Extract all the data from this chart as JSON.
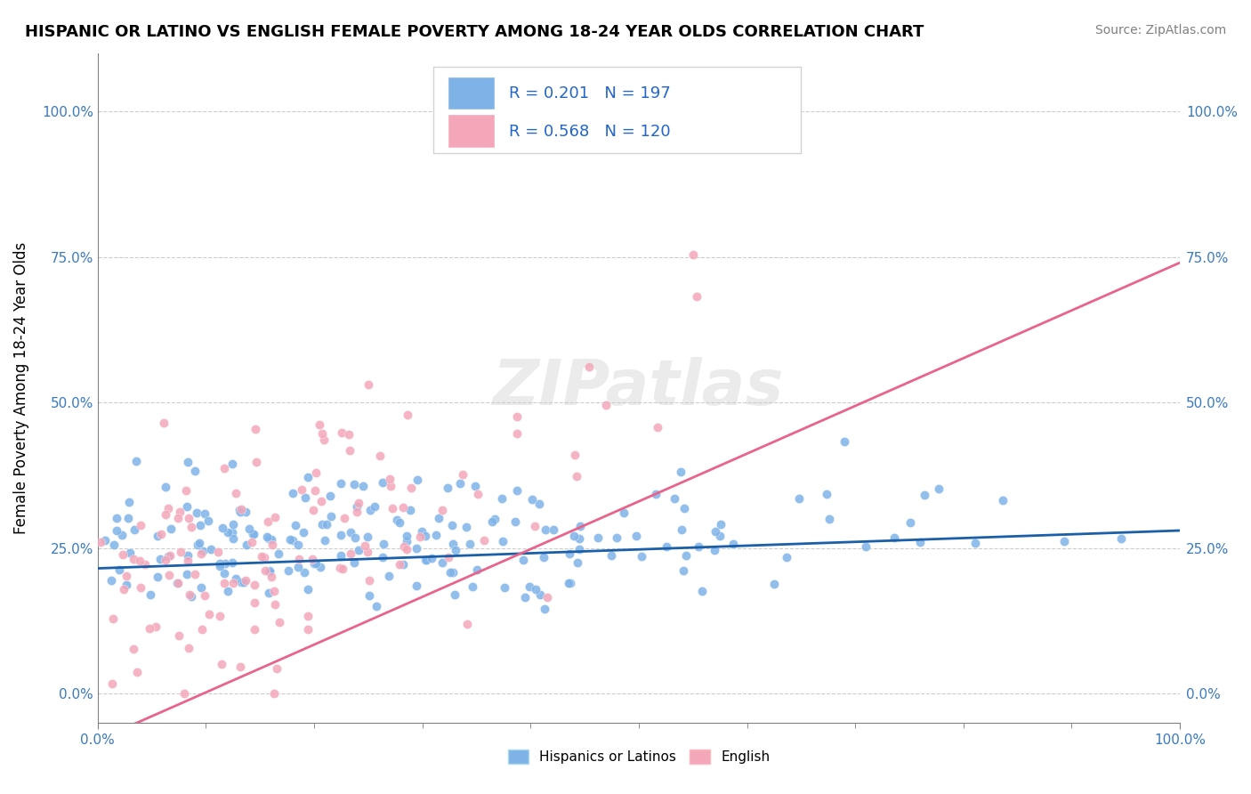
{
  "title": "HISPANIC OR LATINO VS ENGLISH FEMALE POVERTY AMONG 18-24 YEAR OLDS CORRELATION CHART",
  "source": "Source: ZipAtlas.com",
  "xlabel": "",
  "ylabel": "Female Poverty Among 18-24 Year Olds",
  "xlim": [
    0.0,
    1.0
  ],
  "ylim": [
    -0.05,
    1.1
  ],
  "xticklabels": [
    "0.0%",
    "100.0%"
  ],
  "yticklabels": [
    "0.0%",
    "25.0%",
    "50.0%",
    "75.0%",
    "100.0%"
  ],
  "yticks": [
    0.0,
    0.25,
    0.5,
    0.75,
    1.0
  ],
  "blue_R": 0.201,
  "blue_N": 197,
  "pink_R": 0.568,
  "pink_N": 120,
  "blue_color": "#7fb3e8",
  "pink_color": "#f4a7b9",
  "blue_line_color": "#1a5fa8",
  "pink_line_color": "#e8648a",
  "watermark": "ZIPatlas",
  "legend_label_blue": "Hispanics or Latinos",
  "legend_label_pink": "English",
  "blue_intercept": 0.215,
  "blue_slope": 0.065,
  "pink_intercept": -0.08,
  "pink_slope": 0.82,
  "seed": 42
}
